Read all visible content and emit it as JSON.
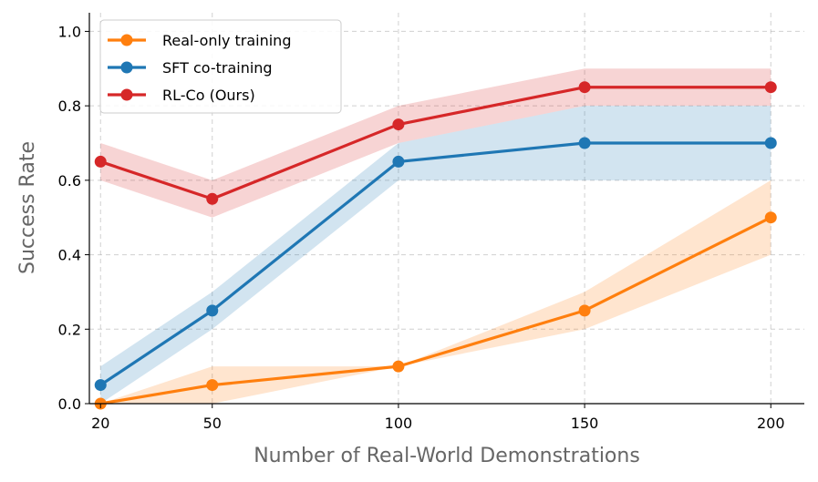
{
  "chart_data": {
    "type": "line",
    "title": "",
    "xlabel": "Number of Real-World Demonstrations",
    "ylabel": "Success Rate",
    "x": [
      20,
      50,
      100,
      150,
      200
    ],
    "xticks": [
      "20",
      "50",
      "100",
      "150",
      "200"
    ],
    "yticks": [
      "0.0",
      "0.2",
      "0.4",
      "0.6",
      "0.8",
      "1.0"
    ],
    "ytick_values": [
      0.0,
      0.2,
      0.4,
      0.6,
      0.8,
      1.0
    ],
    "xlim": [
      17,
      209
    ],
    "ylim": [
      0.0,
      1.05
    ],
    "grid": true,
    "legend_position": "top-left",
    "series": [
      {
        "name": "Real-only training",
        "color": "#ff7f0e",
        "values": [
          0.0,
          0.05,
          0.1,
          0.25,
          0.5
        ],
        "lower": [
          0.0,
          0.0,
          0.1,
          0.2,
          0.4
        ],
        "upper": [
          0.0,
          0.1,
          0.1,
          0.3,
          0.6
        ]
      },
      {
        "name": "SFT co-training",
        "color": "#1f77b4",
        "values": [
          0.05,
          0.25,
          0.65,
          0.7,
          0.7
        ],
        "lower": [
          0.0,
          0.2,
          0.6,
          0.6,
          0.6
        ],
        "upper": [
          0.1,
          0.3,
          0.7,
          0.8,
          0.8
        ]
      },
      {
        "name": "RL-Co (Ours)",
        "color": "#d62728",
        "values": [
          0.65,
          0.55,
          0.75,
          0.85,
          0.85
        ],
        "lower": [
          0.6,
          0.5,
          0.7,
          0.8,
          0.8
        ],
        "upper": [
          0.7,
          0.6,
          0.8,
          0.9,
          0.9
        ]
      }
    ]
  }
}
